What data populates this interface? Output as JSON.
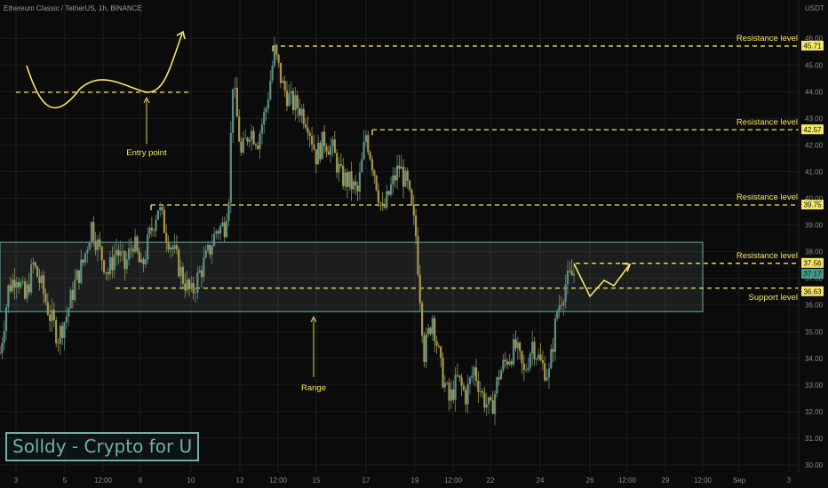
{
  "chart_title": "Ethereum Classic / TetherUS, 1h, BINANCE",
  "currency_label": "USDT",
  "watermark": "Solldy - Crypto for U",
  "colors": {
    "background": "#0b0b0b",
    "grid": "#1c1c1c",
    "candle_up": "#5d8f86",
    "candle_down": "#a8974a",
    "annotation": "#f5e663",
    "range_box": "#6fb0a8",
    "last_price_tag": "#3f9c8b"
  },
  "chart_data": {
    "type": "candlestick",
    "title": "Ethereum Classic / TetherUS, 1h, BINANCE",
    "ylabel": "USDT",
    "ylim": [
      29.8,
      46.4
    ],
    "grid": true,
    "x_ticks": [
      "3",
      "5",
      "12:00",
      "8",
      "10",
      "12",
      "12:00",
      "15",
      "17",
      "19",
      "12:00",
      "22",
      "24",
      "26",
      "12:00",
      "29",
      "12:00",
      "Sep",
      "3"
    ],
    "y_ticks": [
      "30.00",
      "31.00",
      "32.00",
      "33.00",
      "34.00",
      "35.00",
      "36.00",
      "37.00",
      "38.00",
      "39.00",
      "40.00",
      "41.00",
      "42.00",
      "43.00",
      "44.00",
      "45.00",
      "46.00"
    ],
    "price_path": [
      [
        0,
        34.2
      ],
      [
        2,
        36.6
      ],
      [
        4,
        37.2
      ],
      [
        6,
        36.2
      ],
      [
        8,
        37.5
      ],
      [
        10,
        36.7
      ],
      [
        12,
        35.6
      ],
      [
        14,
        34.8
      ],
      [
        16,
        35.6
      ],
      [
        18,
        36.8
      ],
      [
        20,
        37.6
      ],
      [
        22,
        39.0
      ],
      [
        24,
        38.0
      ],
      [
        26,
        37.2
      ],
      [
        28,
        38.1
      ],
      [
        30,
        37.4
      ],
      [
        32,
        38.4
      ],
      [
        34,
        37.3
      ],
      [
        36,
        38.6
      ],
      [
        38,
        39.7
      ],
      [
        40,
        38.7
      ],
      [
        42,
        37.9
      ],
      [
        44,
        37.0
      ],
      [
        46,
        36.4
      ],
      [
        48,
        37.2
      ],
      [
        50,
        37.9
      ],
      [
        52,
        38.8
      ],
      [
        54,
        39.0
      ],
      [
        55,
        40.2
      ],
      [
        56,
        44.4
      ],
      [
        58,
        41.6
      ],
      [
        60,
        42.6
      ],
      [
        62,
        42.2
      ],
      [
        64,
        43.4
      ],
      [
        66,
        45.5
      ],
      [
        68,
        44.2
      ],
      [
        70,
        43.6
      ],
      [
        72,
        43.4
      ],
      [
        74,
        42.9
      ],
      [
        76,
        41.6
      ],
      [
        78,
        42.2
      ],
      [
        80,
        41.8
      ],
      [
        82,
        40.8
      ],
      [
        84,
        40.6
      ],
      [
        86,
        40.2
      ],
      [
        88,
        42.4
      ],
      [
        90,
        41.0
      ],
      [
        92,
        39.4
      ],
      [
        94,
        40.4
      ],
      [
        96,
        41.2
      ],
      [
        98,
        40.4
      ],
      [
        100,
        38.6
      ],
      [
        101,
        36.4
      ],
      [
        102,
        34.2
      ],
      [
        104,
        35.6
      ],
      [
        106,
        33.6
      ],
      [
        108,
        32.4
      ],
      [
        110,
        33.2
      ],
      [
        112,
        32.6
      ],
      [
        114,
        33.6
      ],
      [
        116,
        32.6
      ],
      [
        118,
        32.0
      ],
      [
        120,
        33.4
      ],
      [
        122,
        34.0
      ],
      [
        124,
        34.4
      ],
      [
        126,
        33.4
      ],
      [
        128,
        34.6
      ],
      [
        130,
        33.8
      ],
      [
        132,
        33.4
      ],
      [
        134,
        35.8
      ],
      [
        136,
        36.8
      ],
      [
        138,
        37.2
      ]
    ],
    "last_price": 37.17,
    "last_price_label": "37.17",
    "range_zone": {
      "low": 35.75,
      "high": 38.35,
      "label": "Range"
    },
    "levels": [
      {
        "label": "Resistance level",
        "value": 45.71,
        "tag": "45.71",
        "kind": "resistance"
      },
      {
        "label": "Resistance level",
        "value": 42.57,
        "tag": "42.57",
        "kind": "resistance"
      },
      {
        "label": "Resistance level",
        "value": 39.75,
        "tag": "39.75",
        "kind": "resistance"
      },
      {
        "label": "Resistance level",
        "value": 37.56,
        "tag": "37.56",
        "kind": "resistance"
      },
      {
        "label": "Support level",
        "value": 36.63,
        "tag": "36.63",
        "kind": "support"
      }
    ],
    "annotations": [
      {
        "text": "Entry point"
      },
      {
        "text": "Range"
      }
    ]
  }
}
